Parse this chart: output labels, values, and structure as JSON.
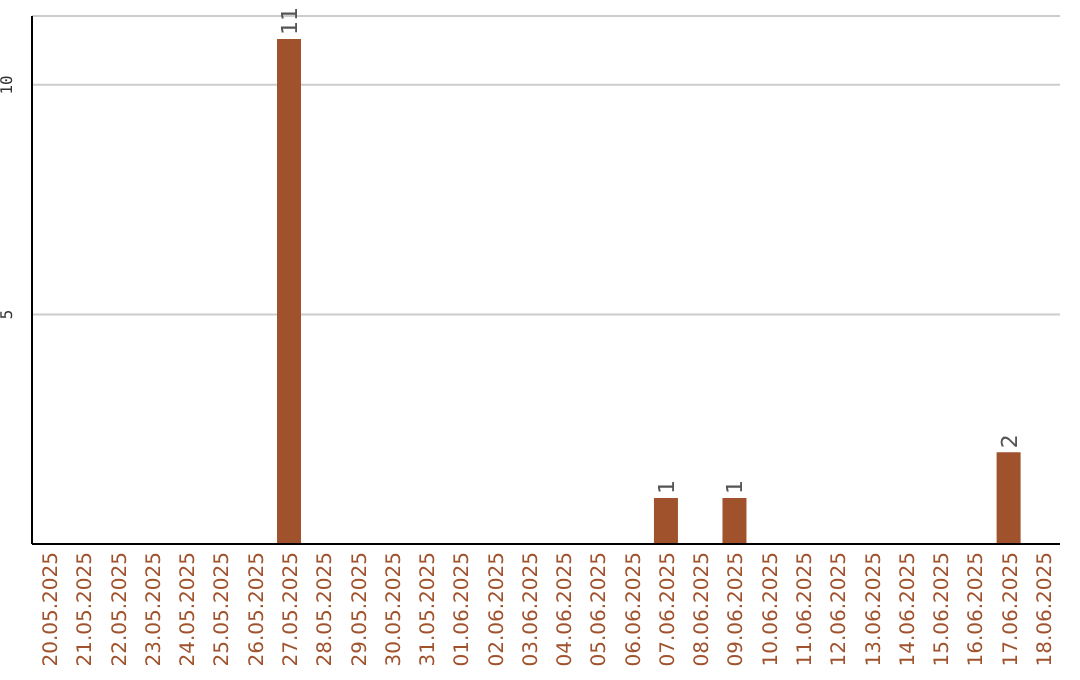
{
  "chart_data": {
    "type": "bar",
    "categories": [
      "20.05.2025",
      "21.05.2025",
      "22.05.2025",
      "23.05.2025",
      "24.05.2025",
      "25.05.2025",
      "26.05.2025",
      "27.05.2025",
      "28.05.2025",
      "29.05.2025",
      "30.05.2025",
      "31.05.2025",
      "01.06.2025",
      "02.06.2025",
      "03.06.2025",
      "04.06.2025",
      "05.06.2025",
      "06.06.2025",
      "07.06.2025",
      "08.06.2025",
      "09.06.2025",
      "10.06.2025",
      "11.06.2025",
      "12.06.2025",
      "13.06.2025",
      "14.06.2025",
      "15.06.2025",
      "16.06.2025",
      "17.06.2025",
      "18.06.2025"
    ],
    "values": [
      0,
      0,
      0,
      0,
      0,
      0,
      0,
      11,
      0,
      0,
      0,
      0,
      0,
      0,
      0,
      0,
      0,
      0,
      1,
      0,
      1,
      0,
      0,
      0,
      0,
      0,
      0,
      0,
      2,
      0
    ],
    "value_labels": [
      null,
      null,
      null,
      null,
      null,
      null,
      null,
      "11",
      null,
      null,
      null,
      null,
      null,
      null,
      null,
      null,
      null,
      null,
      "1",
      null,
      "1",
      null,
      null,
      null,
      null,
      null,
      null,
      null,
      "2",
      null
    ],
    "color": "#a0522d",
    "ylim": [
      0,
      11.5
    ],
    "yticks": [
      5,
      10
    ],
    "grid": "y"
  }
}
